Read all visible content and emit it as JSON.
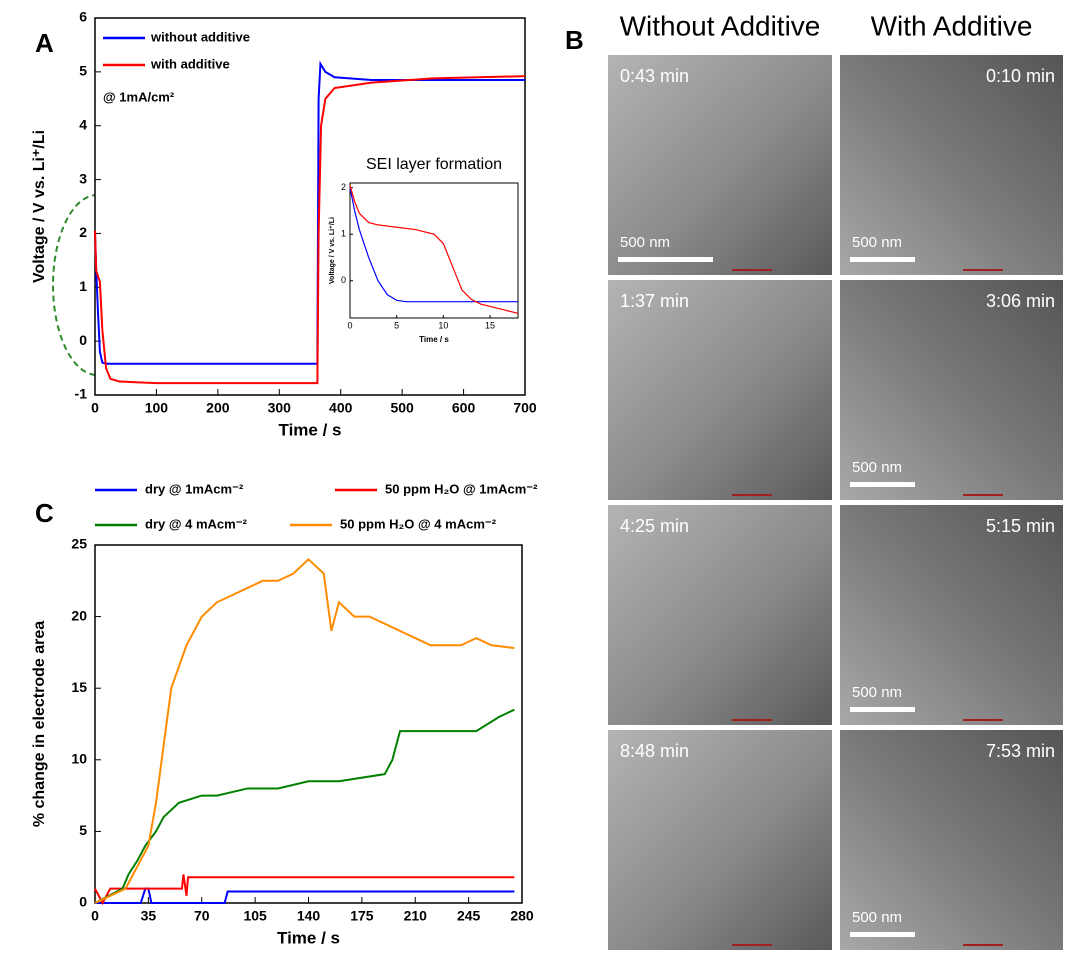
{
  "chart_data": [
    {
      "type": "line",
      "panel_label": "A",
      "xlabel": "Time / s",
      "ylabel": "Voltage / V vs. Li⁺/Li",
      "annotation": "@ 1mA/cm²",
      "xlim": [
        0,
        700
      ],
      "xticks": [
        0,
        100,
        200,
        300,
        400,
        500,
        600,
        700
      ],
      "ylim": [
        -1,
        6
      ],
      "yticks": [
        -1,
        0,
        1,
        2,
        3,
        4,
        5,
        6
      ],
      "series": [
        {
          "name": "without additive",
          "color": "#0000ff",
          "x": [
            0,
            2,
            5,
            8,
            12,
            20,
            100,
            200,
            300,
            362,
            364,
            367,
            375,
            390,
            450,
            550,
            700
          ],
          "values": [
            2,
            1.3,
            0.5,
            -0.2,
            -0.4,
            -0.42,
            -0.42,
            -0.42,
            -0.42,
            -0.42,
            4.5,
            5.15,
            5.0,
            4.9,
            4.85,
            4.85,
            4.85
          ]
        },
        {
          "name": "with additive",
          "color": "#ff0000",
          "x": [
            0,
            2,
            5,
            8,
            12,
            18,
            25,
            40,
            100,
            200,
            300,
            362,
            364,
            368,
            375,
            390,
            450,
            550,
            700
          ],
          "values": [
            2.05,
            1.3,
            1.2,
            1.1,
            0.2,
            -0.5,
            -0.7,
            -0.75,
            -0.78,
            -0.78,
            -0.78,
            -0.78,
            2,
            4,
            4.5,
            4.7,
            4.8,
            4.88,
            4.92
          ]
        }
      ]
    },
    {
      "type": "line",
      "title": "SEI layer formation",
      "xlabel": "Time / s",
      "ylabel": "Voltage / V vs. Li⁺/Li",
      "xlim": [
        0,
        18
      ],
      "xticks": [
        0,
        5,
        10,
        15
      ],
      "ylim": [
        -0.8,
        2.1
      ],
      "yticks": [
        0,
        1,
        2
      ],
      "series": [
        {
          "color": "#0000ff",
          "x": [
            0,
            0.5,
            1,
            2,
            3,
            4,
            5,
            6,
            8,
            18
          ],
          "values": [
            2,
            1.5,
            1.1,
            0.5,
            0,
            -0.3,
            -0.42,
            -0.45,
            -0.45,
            -0.45
          ]
        },
        {
          "color": "#ff0000",
          "x": [
            0,
            0.5,
            1,
            2,
            3,
            5,
            7,
            9,
            10,
            11,
            12,
            13,
            14,
            16,
            18
          ],
          "values": [
            2.05,
            1.7,
            1.45,
            1.25,
            1.2,
            1.15,
            1.1,
            1.0,
            0.8,
            0.3,
            -0.2,
            -0.4,
            -0.5,
            -0.6,
            -0.7
          ]
        }
      ]
    },
    {
      "type": "line",
      "panel_label": "C",
      "xlabel": "Time / s",
      "ylabel": "% change in electrode area",
      "xlim": [
        0,
        280
      ],
      "xticks": [
        0,
        35,
        70,
        105,
        140,
        175,
        210,
        245,
        280
      ],
      "ylim": [
        0,
        25
      ],
      "yticks": [
        0,
        5,
        10,
        15,
        20,
        25
      ],
      "series": [
        {
          "name": "dry @ 1mAcm⁻²",
          "color": "#0000ff",
          "x": [
            0,
            30,
            33,
            35,
            37,
            85,
            87,
            275
          ],
          "values": [
            0,
            0,
            1,
            1,
            0,
            0,
            0.8,
            0.8
          ]
        },
        {
          "name": "50 ppm H₂O @ 1mAcm⁻²",
          "color": "#ff0000",
          "x": [
            0,
            5,
            10,
            15,
            35,
            57,
            58,
            60,
            61,
            275
          ],
          "values": [
            1,
            0,
            1,
            1,
            1,
            1,
            2,
            0.5,
            1.8,
            1.8
          ]
        },
        {
          "name": "dry @ 4 mAcm⁻²",
          "color": "#008000",
          "x": [
            0,
            18,
            22,
            28,
            33,
            40,
            45,
            55,
            70,
            80,
            100,
            120,
            140,
            160,
            190,
            195,
            200,
            250,
            265,
            275
          ],
          "values": [
            0,
            1,
            2,
            3,
            4,
            5,
            6,
            7,
            7.5,
            7.5,
            8,
            8,
            8.5,
            8.5,
            9,
            10,
            12,
            12,
            13,
            13.5
          ]
        },
        {
          "name": "50 ppm H₂O @ 4 mAcm⁻²",
          "color": "#ff8c00",
          "x": [
            0,
            10,
            20,
            25,
            30,
            35,
            40,
            45,
            50,
            60,
            70,
            80,
            90,
            100,
            110,
            120,
            130,
            140,
            150,
            155,
            160,
            170,
            180,
            190,
            200,
            210,
            220,
            230,
            240,
            250,
            260,
            275
          ],
          "values": [
            0,
            0.5,
            1,
            2,
            3,
            4,
            7,
            11,
            15,
            18,
            20,
            21,
            21.5,
            22,
            22.5,
            22.5,
            23,
            24,
            23,
            19,
            21,
            20,
            20,
            19.5,
            19,
            18.5,
            18,
            18,
            18,
            18.5,
            18,
            17.8
          ]
        }
      ]
    }
  ],
  "micrographs": {
    "panel_label": "B",
    "columns": [
      "Without Additive",
      "With Additive"
    ],
    "rows": [
      [
        {
          "time": "0:43 min",
          "scale": "500 nm"
        },
        {
          "time": "0:10 min",
          "scale": "500 nm"
        }
      ],
      [
        {
          "time": "1:37 min"
        },
        {
          "time": "3:06 min",
          "scale": "500 nm"
        }
      ],
      [
        {
          "time": "4:25 min"
        },
        {
          "time": "5:15 min",
          "scale": "500 nm"
        }
      ],
      [
        {
          "time": "8:48 min"
        },
        {
          "time": "7:53 min",
          "scale": "500 nm"
        }
      ]
    ]
  }
}
